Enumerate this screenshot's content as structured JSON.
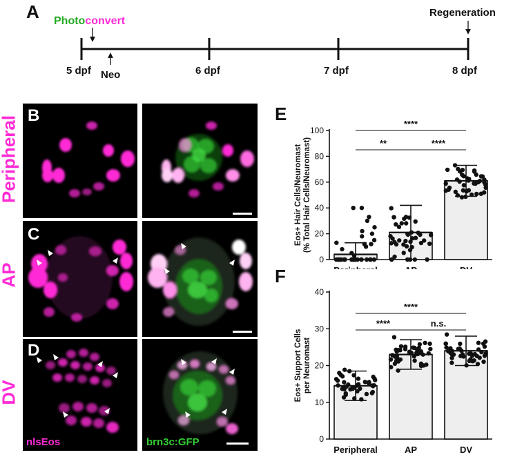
{
  "panels": {
    "a": "A",
    "b": "B",
    "c": "C",
    "d": "D",
    "e": "E",
    "f": "F"
  },
  "timeline": {
    "photo_word": "Photo",
    "convert_word": "convert",
    "regeneration": "Regeneration",
    "neo": "Neo",
    "ticks": [
      "5 dpf",
      "6 dpf",
      "7 dpf",
      "8 dpf"
    ]
  },
  "rows": {
    "peripheral": "Peripheral",
    "ap": "AP",
    "dv": "DV"
  },
  "channels": {
    "magenta": "nlsEos",
    "green": "brn3c:GFP"
  },
  "colors": {
    "magenta": "#ff2bd6",
    "green": "#33cc33",
    "bar_fill": "#eeeeee"
  },
  "chart_data": [
    {
      "type": "bar",
      "ylabel_line1": "Eos+ Hair Cells/Neuromast",
      "ylabel_line2": "(% Total Hair Cells/Neuromast)",
      "categories": [
        "Peripheral",
        "AP",
        "DV"
      ],
      "values": [
        4,
        21,
        61
      ],
      "errors": [
        9,
        21,
        12
      ],
      "ylim": [
        0,
        100
      ],
      "yticks": [
        0,
        20,
        40,
        60,
        80,
        100
      ],
      "significance": [
        {
          "from": 1,
          "to": 2,
          "label": "**"
        },
        {
          "from": 2,
          "to": 3,
          "label": "****"
        },
        {
          "from": 1,
          "to": 3,
          "label": "****"
        }
      ]
    },
    {
      "type": "bar",
      "ylabel_line1": "Eos+ Support Cells",
      "ylabel_line2": "per Neuromast",
      "categories": [
        "Peripheral",
        "AP",
        "DV"
      ],
      "values": [
        14.5,
        23,
        24
      ],
      "errors": [
        4,
        4,
        4
      ],
      "ylim": [
        0,
        40
      ],
      "yticks": [
        0,
        10,
        20,
        30,
        40
      ],
      "significance": [
        {
          "from": 1,
          "to": 2,
          "label": "****"
        },
        {
          "from": 2,
          "to": 3,
          "label": "n.s."
        },
        {
          "from": 1,
          "to": 3,
          "label": "****"
        }
      ]
    }
  ]
}
